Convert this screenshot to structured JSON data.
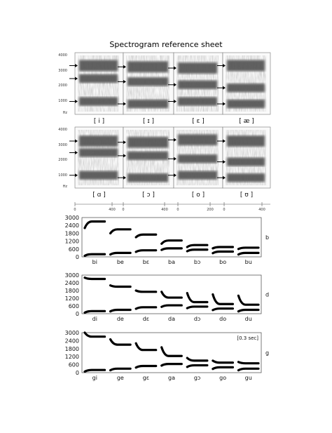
{
  "title": "Spectrogram reference sheet",
  "spectrograms": {
    "y_ticks": [
      "4000",
      "3000",
      "2000",
      "1000",
      "Hz"
    ],
    "x_ticks": [
      "0",
      "400",
      "0",
      "400",
      "0",
      "200",
      "0",
      "400"
    ],
    "rows": [
      {
        "vowels": [
          "[ i ]",
          "[ ɪ ]",
          "[ ɛ ]",
          "[ æ ]"
        ]
      },
      {
        "vowels": [
          "[ ɑ ]",
          "[ ɔ ]",
          "[ o ]",
          "[ ʊ ]"
        ]
      }
    ]
  },
  "formant_panels": [
    {
      "consonant": "b",
      "y_ticks": [
        3000,
        2400,
        1800,
        1200,
        600,
        0
      ],
      "syllables": [
        "bi",
        "be",
        "bɛ",
        "ba",
        "bɔ",
        "bo",
        "bu"
      ],
      "f1": [
        200,
        300,
        500,
        650,
        550,
        400,
        300
      ],
      "f2": [
        2700,
        2100,
        1700,
        1250,
        900,
        750,
        700
      ],
      "f2_onset": [
        2200,
        1800,
        1500,
        1000,
        750,
        650,
        600
      ],
      "time_label": ""
    },
    {
      "consonant": "d",
      "y_ticks": [
        3000,
        2400,
        1800,
        1200,
        600,
        0
      ],
      "syllables": [
        "di",
        "de",
        "dɛ",
        "da",
        "dɔ",
        "do",
        "du"
      ],
      "f1": [
        200,
        300,
        500,
        650,
        550,
        400,
        300
      ],
      "f2": [
        2700,
        2100,
        1700,
        1250,
        900,
        750,
        700
      ],
      "f2_onset": [
        2800,
        2200,
        1800,
        1700,
        1600,
        1500,
        1400
      ],
      "time_label": ""
    },
    {
      "consonant": "g",
      "y_ticks": [
        3000,
        2400,
        1800,
        1200,
        600,
        0
      ],
      "syllables": [
        "gi",
        "ge",
        "gɛ",
        "ga",
        "gɔ",
        "go",
        "gu"
      ],
      "f1": [
        200,
        300,
        500,
        650,
        550,
        400,
        300
      ],
      "f2": [
        2700,
        2100,
        1700,
        1250,
        900,
        750,
        700
      ],
      "f2_onset": [
        3000,
        2500,
        2200,
        1900,
        1100,
        900,
        800
      ],
      "time_label": "[0.3 sec]"
    }
  ]
}
